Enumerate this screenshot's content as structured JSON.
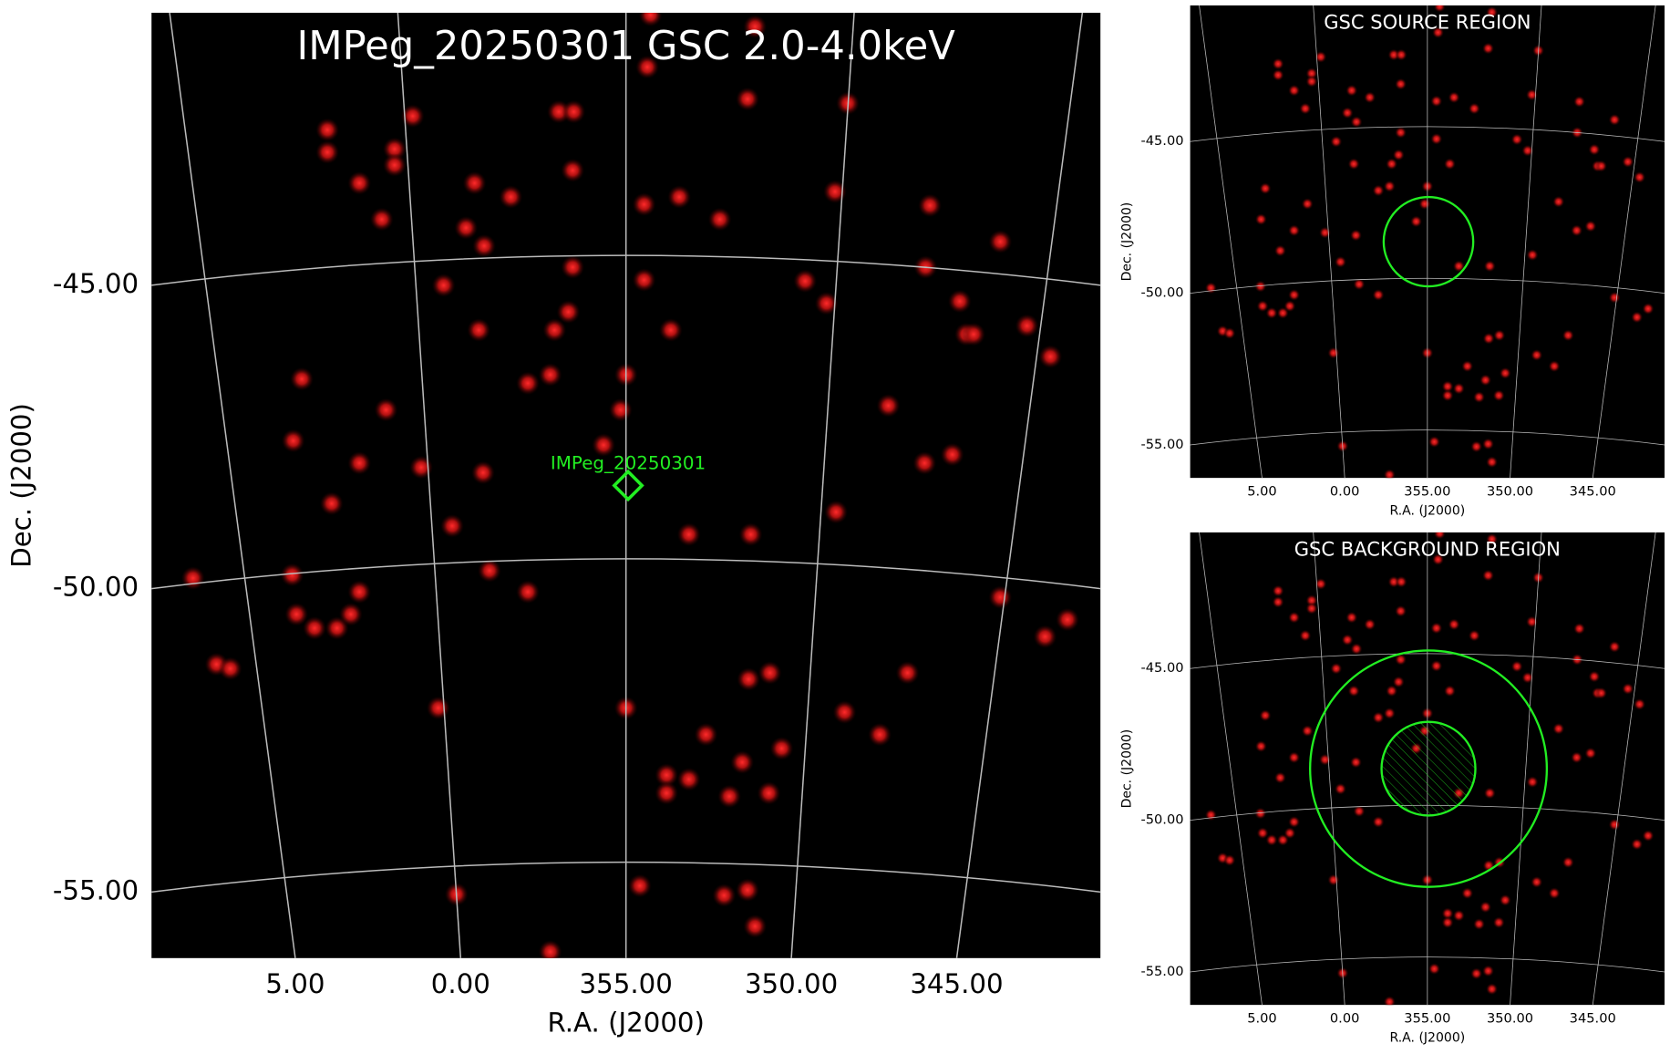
{
  "chart_data": [
    {
      "type": "image",
      "title": "IMPeg_20250301 GSC 2.0-4.0keV",
      "xlabel": "R.A. (J2000)",
      "ylabel": "Dec. (J2000)",
      "xlim": [
        9.35,
        340.65
      ],
      "ylim": [
        -56.09,
        -40.51
      ],
      "xticks": [
        {
          "value": 5,
          "label": "5.00"
        },
        {
          "value": 0,
          "label": "0.00"
        },
        {
          "value": 355,
          "label": "355.00"
        },
        {
          "value": 350,
          "label": "350.00"
        },
        {
          "value": 345,
          "label": "345.00"
        }
      ],
      "yticks": [
        {
          "value": -45,
          "label": "-45.00"
        },
        {
          "value": -50,
          "label": "-50.00"
        },
        {
          "value": -55,
          "label": "-55.00"
        }
      ],
      "grid": true,
      "annotation": "IMPeg_20250301"
    },
    {
      "type": "image",
      "title": "GSC SOURCE REGION",
      "xlabel": "R.A. (J2000)",
      "ylabel": "Dec. (J2000)",
      "xlim": [
        9.35,
        340.65
      ],
      "ylim": [
        -56.09,
        -40.51
      ],
      "xticks": [
        {
          "value": 5,
          "label": "5.00"
        },
        {
          "value": 0,
          "label": "0.00"
        },
        {
          "value": 355,
          "label": "355.00"
        },
        {
          "value": 350,
          "label": "350.00"
        },
        {
          "value": 345,
          "label": "345.00"
        }
      ],
      "yticks": [
        {
          "value": -45,
          "label": "-45.00"
        },
        {
          "value": -50,
          "label": "-50.00"
        },
        {
          "value": -55,
          "label": "-55.00"
        }
      ],
      "grid": true
    },
    {
      "type": "image",
      "title": "GSC BACKGROUND REGION",
      "xlabel": "R.A. (J2000)",
      "ylabel": "Dec. (J2000)",
      "xlim": [
        9.35,
        340.65
      ],
      "ylim": [
        -56.09,
        -40.51
      ],
      "xticks": [
        {
          "value": 5,
          "label": "5.00"
        },
        {
          "value": 0,
          "label": "0.00"
        },
        {
          "value": 355,
          "label": "355.00"
        },
        {
          "value": 350,
          "label": "350.00"
        },
        {
          "value": 345,
          "label": "345.00"
        }
      ],
      "yticks": [
        {
          "value": -45,
          "label": "-45.00"
        },
        {
          "value": -50,
          "label": "-50.00"
        },
        {
          "value": -55,
          "label": "-55.00"
        }
      ],
      "grid": true
    }
  ]
}
